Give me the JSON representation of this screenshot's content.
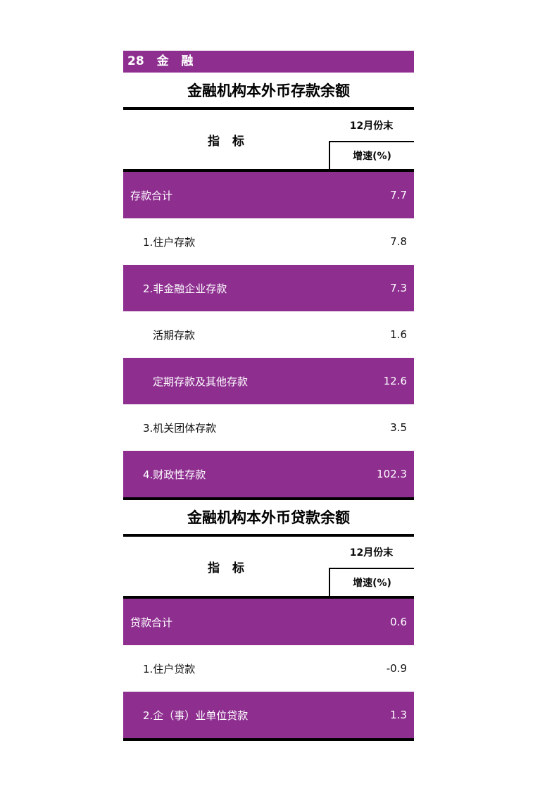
{
  "colors": {
    "purple": "#8E2F90",
    "ink": "#0a0a0a"
  },
  "section_header": {
    "label": "28 金 融"
  },
  "tables": [
    {
      "title": "金融机构本外币存款余额",
      "header": {
        "indicator": "指 标",
        "period": "12月份末",
        "metric": "增速(%)"
      },
      "rows": [
        {
          "label": "存款合计",
          "value": "7.7"
        },
        {
          "label": "1.住户存款",
          "value": "7.8"
        },
        {
          "label": "2.非金融企业存款",
          "value": "7.3"
        },
        {
          "label": "活期存款",
          "value": "1.6"
        },
        {
          "label": "定期存款及其他存款",
          "value": "12.6"
        },
        {
          "label": "3.机关团体存款",
          "value": "3.5"
        },
        {
          "label": "4.财政性存款",
          "value": "102.3"
        }
      ]
    },
    {
      "title": "金融机构本外币贷款余额",
      "header": {
        "indicator": "指 标",
        "period": "12月份末",
        "metric": "增速(%)"
      },
      "rows": [
        {
          "label": "贷款合计",
          "value": "0.6"
        },
        {
          "label": "1.住户贷款",
          "value": "-0.9"
        },
        {
          "label": "2.企（事）业单位贷款",
          "value": "1.3"
        }
      ]
    }
  ]
}
